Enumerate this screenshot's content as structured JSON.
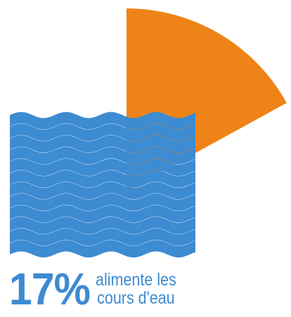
{
  "chart_data": {
    "type": "pie",
    "slices": [
      {
        "value": 17,
        "color": "#ee8418",
        "highlighted": true
      },
      {
        "value": 83,
        "color": "#ffffff",
        "highlighted": false
      }
    ],
    "percent_label": "17%",
    "description_lines": [
      "alimente les",
      "cours d'eau"
    ],
    "icon": "water-waves-icon",
    "colors": {
      "accent": "#ee8418",
      "water": "#3d8bd1",
      "text": "#3d8bd1",
      "background": "#ffffff"
    }
  }
}
